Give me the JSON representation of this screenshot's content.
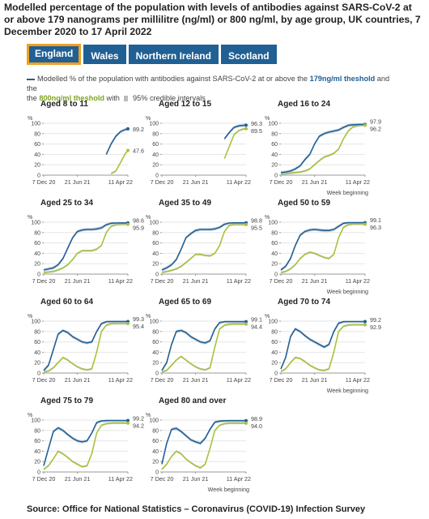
{
  "title": "Modelled percentage of the population with levels of antibodies against SARS-CoV-2 at or above 179 nanograms per millilitre (ng/ml) or 800 ng/ml, by age group, UK countries, 7 December 2020 to 17 April 2022",
  "tabs": [
    {
      "label": "England",
      "active": true
    },
    {
      "label": "Wales",
      "active": false
    },
    {
      "label": "Northern Ireland",
      "active": false
    },
    {
      "label": "Scotland",
      "active": false
    }
  ],
  "legend": {
    "text1": "Modelled % of the population with antibodies against SARS-CoV-2 at or above the ",
    "blue_label": "179ng/ml theshold",
    "text2": " and the ",
    "green_label": "800ng/ml theshold",
    "text3": " with ",
    "text4": " 95% credible intervals"
  },
  "footer": "Source: Office for National Statistics – Coronavirus (COVID-19) Infection Survey",
  "colors": {
    "blue": "#206095",
    "green": "#a8c23a",
    "ci": "#bcc8d6",
    "tab_active_border": "#f0a020"
  },
  "chart_data": {
    "type": "line",
    "y_unit": "%",
    "ylim": [
      0,
      100
    ],
    "y_ticks": [
      0,
      20,
      40,
      60,
      80,
      100
    ],
    "x_ticks": [
      "7 Dec 20",
      "21 Jun 21",
      "11 Apr 22"
    ],
    "x_axis_label": "Week beginning",
    "x_dates": [
      "2020-12-07",
      "2021-01-04",
      "2021-02-01",
      "2021-03-01",
      "2021-03-29",
      "2021-04-26",
      "2021-05-24",
      "2021-06-21",
      "2021-07-19",
      "2021-08-16",
      "2021-09-13",
      "2021-10-11",
      "2021-11-08",
      "2021-12-06",
      "2022-01-03",
      "2022-01-31",
      "2022-02-28",
      "2022-03-28",
      "2022-04-11"
    ],
    "panels": [
      {
        "name": "Aged 8 to 11",
        "label_179": "89.2",
        "label_800": "47.6",
        "series_179": [
          null,
          null,
          null,
          null,
          null,
          null,
          null,
          null,
          null,
          null,
          null,
          null,
          null,
          40,
          60,
          75,
          84,
          88,
          89.2
        ],
        "series_800": [
          null,
          null,
          null,
          null,
          null,
          null,
          null,
          null,
          null,
          null,
          null,
          null,
          null,
          null,
          3,
          8,
          25,
          42,
          47.6
        ]
      },
      {
        "name": "Aged 12 to 15",
        "label_179": "96.3",
        "label_800": "89.5",
        "series_179": [
          null,
          null,
          null,
          null,
          null,
          null,
          null,
          null,
          null,
          null,
          null,
          null,
          null,
          70,
          82,
          92,
          95,
          96,
          96.3
        ],
        "series_800": [
          null,
          null,
          null,
          null,
          null,
          null,
          null,
          null,
          null,
          null,
          null,
          null,
          null,
          32,
          55,
          78,
          86,
          89,
          89.5
        ]
      },
      {
        "name": "Aged 16 to 24",
        "label_179": "97.9",
        "label_800": "96.2",
        "series_179": [
          5,
          6,
          8,
          12,
          18,
          30,
          40,
          60,
          75,
          80,
          83,
          85,
          87,
          92,
          96,
          97,
          97.5,
          97.8,
          97.9
        ],
        "series_800": [
          2,
          3,
          4,
          5,
          6,
          8,
          12,
          20,
          28,
          35,
          38,
          42,
          50,
          70,
          85,
          93,
          95,
          96,
          96.2
        ]
      },
      {
        "name": "Aged 25 to 34",
        "label_179": "98.6",
        "label_800": "95.9",
        "series_179": [
          8,
          10,
          12,
          18,
          30,
          50,
          70,
          82,
          85,
          86,
          86,
          87,
          89,
          95,
          98,
          98.5,
          98.6,
          98.6,
          98.6
        ],
        "series_800": [
          3,
          4,
          5,
          8,
          12,
          18,
          28,
          40,
          45,
          45,
          45,
          48,
          55,
          80,
          92,
          95,
          95.8,
          95.9,
          95.9
        ]
      },
      {
        "name": "Aged 35 to 49",
        "label_179": "98.8",
        "label_800": "95.5",
        "series_179": [
          8,
          12,
          18,
          28,
          48,
          70,
          78,
          84,
          86,
          86,
          86,
          87,
          90,
          96,
          98.5,
          98.8,
          98.8,
          98.8,
          98.8
        ],
        "series_800": [
          3,
          5,
          7,
          10,
          15,
          22,
          30,
          38,
          38,
          36,
          35,
          40,
          55,
          82,
          94,
          95.5,
          95.5,
          95.5,
          95.5
        ]
      },
      {
        "name": "Aged 50 to 59",
        "label_179": "99.1",
        "label_800": "96.3",
        "series_179": [
          8,
          15,
          30,
          55,
          75,
          82,
          85,
          86,
          85,
          84,
          84,
          86,
          92,
          98,
          99,
          99.1,
          99.1,
          99.1,
          99.1
        ],
        "series_800": [
          3,
          5,
          10,
          18,
          30,
          38,
          42,
          40,
          36,
          32,
          30,
          38,
          70,
          90,
          95,
          96.3,
          96.3,
          96.3,
          96.3
        ]
      },
      {
        "name": "Aged 60 to 64",
        "label_179": "99.3",
        "label_800": "95.4",
        "series_179": [
          5,
          15,
          45,
          75,
          82,
          78,
          70,
          65,
          60,
          58,
          60,
          80,
          95,
          99,
          99.3,
          99.3,
          99.3,
          99.3,
          99.3
        ],
        "series_800": [
          2,
          4,
          10,
          20,
          30,
          25,
          18,
          12,
          8,
          6,
          8,
          40,
          80,
          92,
          95,
          95.4,
          95.4,
          95.4,
          95.4
        ]
      },
      {
        "name": "Aged 65 to 69",
        "label_179": "99.1",
        "label_800": "94.4",
        "series_179": [
          5,
          20,
          55,
          80,
          82,
          78,
          70,
          65,
          60,
          58,
          62,
          85,
          97,
          99,
          99.1,
          99.1,
          99.1,
          99.1,
          99.1
        ],
        "series_800": [
          2,
          5,
          15,
          25,
          32,
          25,
          18,
          12,
          8,
          6,
          10,
          50,
          85,
          92,
          94,
          94.4,
          94.4,
          94.4,
          94.4
        ]
      },
      {
        "name": "Aged 70 to 74",
        "label_179": "99.2",
        "label_800": "92.9",
        "series_179": [
          8,
          30,
          70,
          85,
          80,
          72,
          65,
          60,
          55,
          50,
          55,
          80,
          96,
          99,
          99.2,
          99.2,
          99.2,
          99.2,
          99.2
        ],
        "series_800": [
          3,
          8,
          20,
          30,
          28,
          22,
          15,
          10,
          6,
          5,
          8,
          40,
          80,
          90,
          92.5,
          92.9,
          92.9,
          92.9,
          92.9
        ]
      },
      {
        "name": "Aged 75 to 79",
        "label_179": "99.2",
        "label_800": "94.2",
        "series_179": [
          12,
          45,
          78,
          85,
          80,
          72,
          65,
          60,
          58,
          60,
          75,
          95,
          98.5,
          99,
          99.2,
          99.2,
          99.2,
          99.2,
          99.2
        ],
        "series_800": [
          5,
          12,
          25,
          40,
          35,
          28,
          20,
          15,
          10,
          12,
          35,
          75,
          90,
          93,
          94,
          94.2,
          94.2,
          94.2,
          94.2
        ]
      },
      {
        "name": "Aged 80 and over",
        "label_179": "98.9",
        "label_800": "94.0",
        "series_179": [
          15,
          55,
          82,
          84,
          78,
          70,
          62,
          58,
          55,
          65,
          82,
          96,
          98,
          98.7,
          98.9,
          98.9,
          98.9,
          98.9,
          98.9
        ],
        "series_800": [
          5,
          15,
          30,
          40,
          35,
          25,
          18,
          12,
          8,
          15,
          45,
          80,
          90,
          93,
          94,
          94,
          94,
          94,
          94
        ]
      }
    ]
  }
}
